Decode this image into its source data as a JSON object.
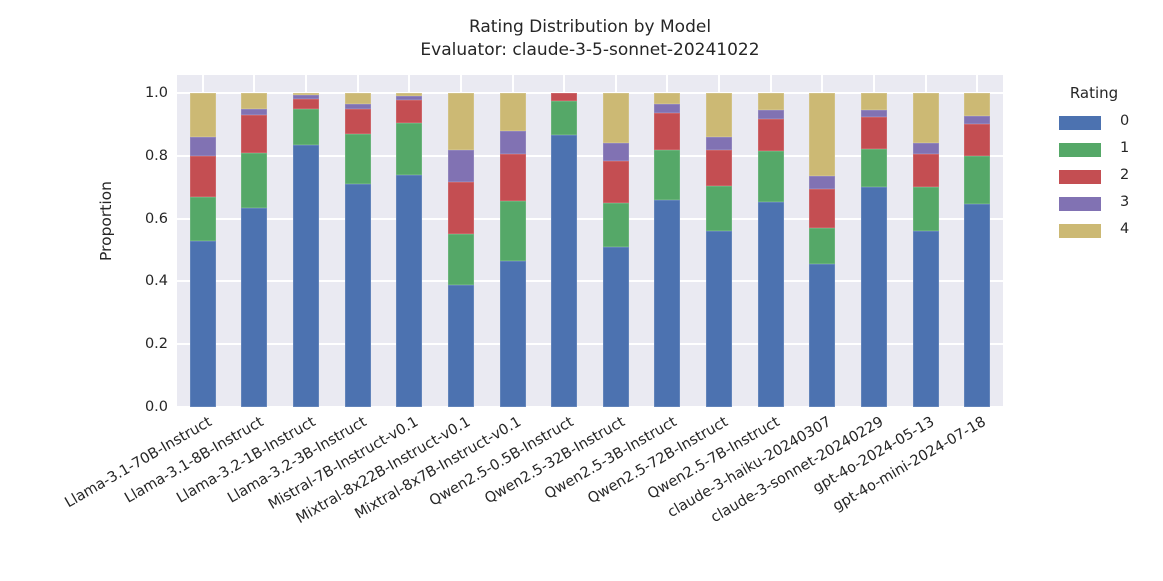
{
  "title": "Rating Distribution by Model",
  "subtitle": "Evaluator: claude-3-5-sonnet-20241022",
  "legend": {
    "title": "Rating",
    "entries": [
      "0",
      "1",
      "2",
      "3",
      "4"
    ]
  },
  "colors": {
    "page_background": "#FFFFFF",
    "plot_background": "#EAEAF2",
    "gridline": "#FFFFFF",
    "text": "#262626",
    "rating_0": "#4C72B0",
    "rating_1": "#55A868",
    "rating_2": "#C44E52",
    "rating_3": "#8172B3",
    "rating_4": "#CCB974"
  },
  "chart_data": {
    "type": "bar",
    "stacked": true,
    "normalized": true,
    "title": "Rating Distribution by Model",
    "subtitle": "Evaluator: claude-3-5-sonnet-20241022",
    "xlabel": "",
    "ylabel": "Proportion",
    "ylim": [
      0.0,
      1.0
    ],
    "ytick_labels": [
      "0.0",
      "0.2",
      "0.4",
      "0.6",
      "0.8",
      "1.0"
    ],
    "yticks": [
      0.0,
      0.2,
      0.4,
      0.6,
      0.8,
      1.0
    ],
    "grid": true,
    "legend_title": "Rating",
    "legend_position": "outside upper right",
    "xtick_rotation_deg": 30,
    "categories": [
      "Llama-3.1-70B-Instruct",
      "Llama-3.1-8B-Instruct",
      "Llama-3.2-1B-Instruct",
      "Llama-3.2-3B-Instruct",
      "Mistral-7B-Instruct-v0.1",
      "Mixtral-8x22B-Instruct-v0.1",
      "Mixtral-8x7B-Instruct-v0.1",
      "Qwen2.5-0.5B-Instruct",
      "Qwen2.5-32B-Instruct",
      "Qwen2.5-3B-Instruct",
      "Qwen2.5-72B-Instruct",
      "Qwen2.5-7B-Instruct",
      "claude-3-haiku-20240307",
      "claude-3-sonnet-20240229",
      "gpt-4o-2024-05-13",
      "gpt-4o-mini-2024-07-18"
    ],
    "series": [
      {
        "name": "0",
        "color": "#4C72B0",
        "values": [
          0.53,
          0.635,
          0.835,
          0.71,
          0.74,
          0.39,
          0.465,
          0.865,
          0.51,
          0.66,
          0.56,
          0.653,
          0.455,
          0.7,
          0.56,
          0.645
        ]
      },
      {
        "name": "1",
        "color": "#55A868",
        "values": [
          0.14,
          0.175,
          0.115,
          0.16,
          0.165,
          0.16,
          0.19,
          0.11,
          0.14,
          0.16,
          0.145,
          0.163,
          0.115,
          0.121,
          0.14,
          0.155
        ]
      },
      {
        "name": "2",
        "color": "#C44E52",
        "values": [
          0.13,
          0.12,
          0.03,
          0.08,
          0.072,
          0.165,
          0.15,
          0.025,
          0.135,
          0.115,
          0.115,
          0.102,
          0.125,
          0.104,
          0.105,
          0.1
        ]
      },
      {
        "name": "3",
        "color": "#8172B3",
        "values": [
          0.06,
          0.02,
          0.015,
          0.015,
          0.013,
          0.105,
          0.075,
          0.0,
          0.055,
          0.03,
          0.04,
          0.027,
          0.04,
          0.022,
          0.035,
          0.028
        ]
      },
      {
        "name": "4",
        "color": "#CCB974",
        "values": [
          0.14,
          0.05,
          0.005,
          0.035,
          0.01,
          0.18,
          0.12,
          0.0,
          0.16,
          0.035,
          0.14,
          0.055,
          0.265,
          0.053,
          0.16,
          0.072
        ]
      }
    ]
  }
}
